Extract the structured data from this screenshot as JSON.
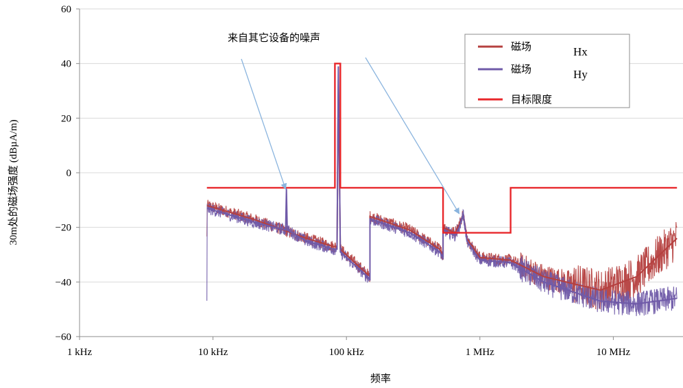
{
  "chart_data": {
    "type": "line",
    "title": "",
    "xlabel": "频率",
    "ylabel": "30m处的磁场强度 (dBµA/m)",
    "x_scale": "log",
    "xlim_hz": [
      1000,
      30000000
    ],
    "ylim": [
      -60,
      60
    ],
    "x_ticks": [
      {
        "value": 1000,
        "label": "1 kHz"
      },
      {
        "value": 10000,
        "label": "10 kHz"
      },
      {
        "value": 100000,
        "label": "100 kHz"
      },
      {
        "value": 1000000,
        "label": "1 MHz"
      },
      {
        "value": 10000000,
        "label": "10 MHz"
      }
    ],
    "y_ticks": [
      {
        "value": 60,
        "label": "60"
      },
      {
        "value": 40,
        "label": "40"
      },
      {
        "value": 20,
        "label": "20"
      },
      {
        "value": 0,
        "label": "0"
      },
      {
        "value": -20,
        "label": "−20"
      },
      {
        "value": -40,
        "label": "−40"
      },
      {
        "value": -60,
        "label": "−60"
      }
    ],
    "grid": "horizontal",
    "legend_position": "top-right",
    "legend": [
      {
        "label": "磁场",
        "suffix": "Hx",
        "color": "#b5403f"
      },
      {
        "label": "磁场",
        "suffix": "Hy",
        "color": "#6f5aa8"
      },
      {
        "label": "目标限度",
        "suffix": "",
        "color": "#e8262a"
      }
    ],
    "annotation": {
      "text": "来自其它设备的噪声",
      "points_to_hz": [
        35000,
        700000
      ],
      "points_to_db": [
        -6,
        -15
      ],
      "arrow_color": "#8ab4de"
    },
    "series": [
      {
        "name": "目标限度",
        "color": "#e8262a",
        "x_hz": [
          9000,
          82000,
          82000,
          90000,
          90000,
          530000,
          530000,
          1700000,
          1700000,
          30000000
        ],
        "y": [
          -5.5,
          -5.5,
          40,
          40,
          -5.5,
          -5.5,
          -22,
          -22,
          -5.5,
          -5.5
        ]
      },
      {
        "name": "磁场",
        "id": "Hx",
        "color": "#b5403f",
        "x_hz": [
          9000,
          20000,
          50000,
          80000,
          85000,
          87000,
          90000,
          150000,
          150000,
          300000,
          500000,
          530000,
          530000,
          650000,
          700000,
          750000,
          800000,
          1000000,
          1700000,
          3000000,
          8000000,
          15000000,
          30000000
        ],
        "y": [
          -12,
          -17,
          -24,
          -27,
          -27,
          34,
          -28,
          -38,
          -16,
          -21,
          -28,
          -30,
          -20,
          -22,
          -19,
          -15,
          -24,
          -31,
          -32,
          -38,
          -43,
          -38,
          -24
        ]
      },
      {
        "name": "磁场",
        "id": "Hy",
        "color": "#6f5aa8",
        "x_hz": [
          9000,
          20000,
          35000,
          35500,
          36000,
          50000,
          80000,
          85000,
          87000,
          90000,
          150000,
          150000,
          300000,
          500000,
          530000,
          530000,
          650000,
          700000,
          750000,
          800000,
          1000000,
          1700000,
          3000000,
          8000000,
          15000000,
          30000000
        ],
        "y": [
          -13,
          -18,
          -21,
          -6,
          -21,
          -25,
          -28,
          -28,
          39,
          -29,
          -39,
          -17,
          -22,
          -29,
          -31,
          -21,
          -23,
          -20,
          -15,
          -25,
          -32,
          -33,
          -40,
          -47,
          -48,
          -46
        ]
      }
    ]
  }
}
